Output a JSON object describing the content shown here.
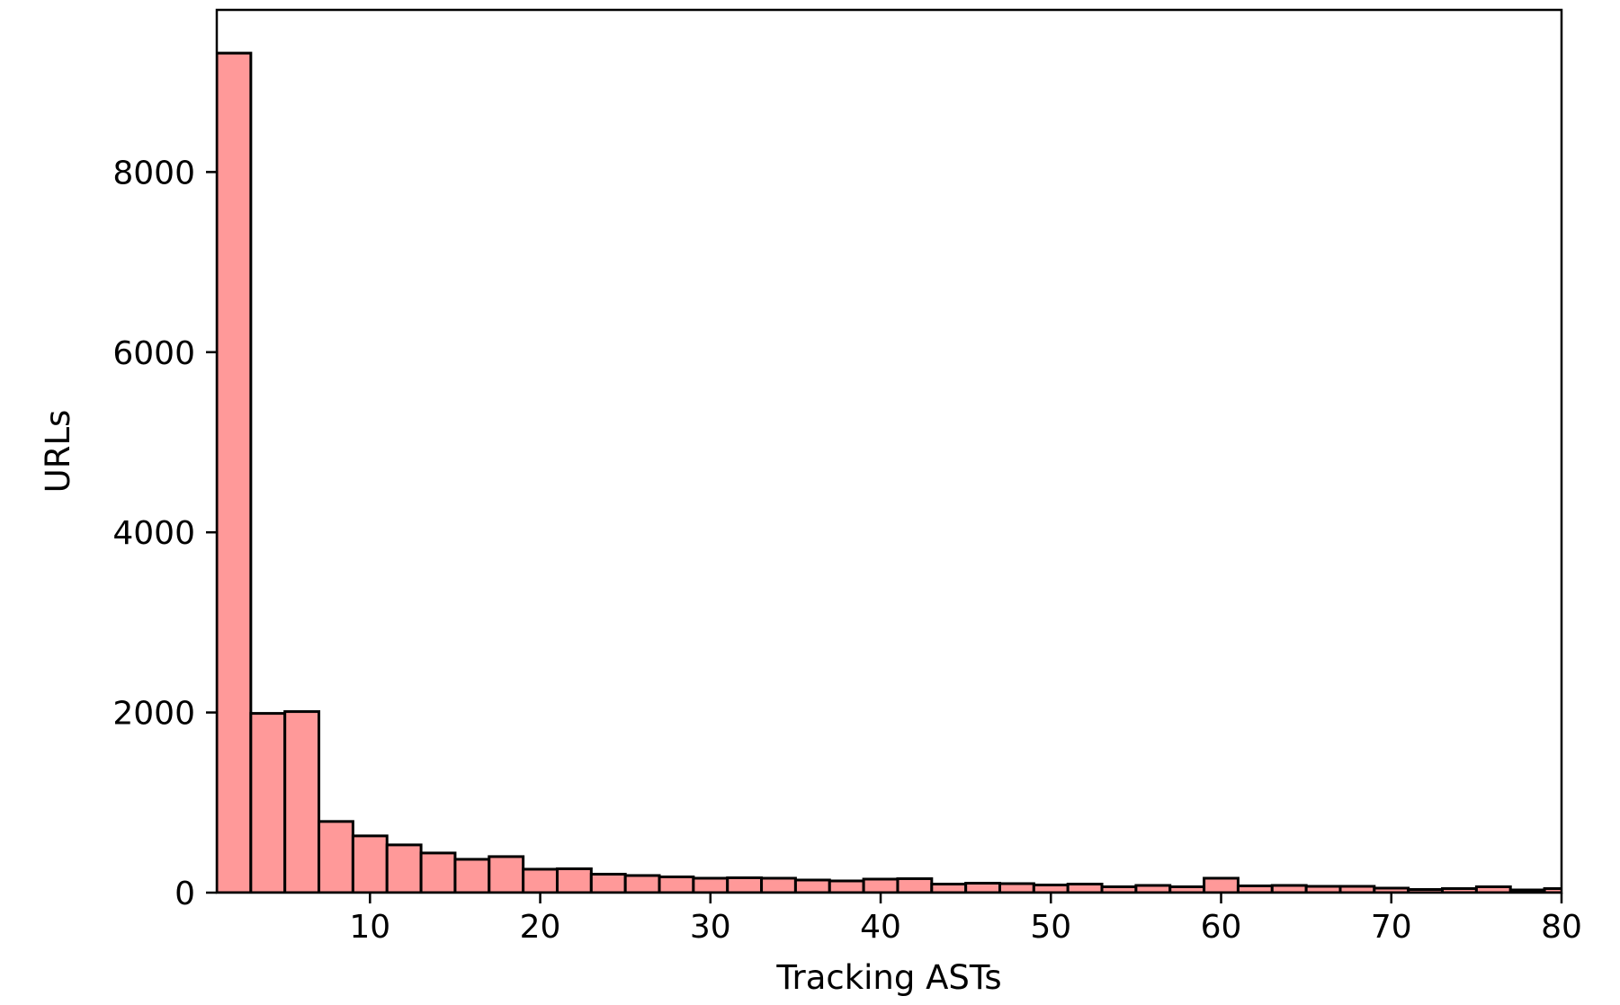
{
  "chart_data": {
    "type": "bar",
    "title": "",
    "xlabel": "Tracking ASTs",
    "ylabel": "URLs",
    "xlim": [
      1,
      80
    ],
    "ylim": [
      0,
      9800
    ],
    "bin_width": 2,
    "bins": [
      {
        "x0": 1,
        "x1": 3,
        "value": 9320
      },
      {
        "x0": 3,
        "x1": 5,
        "value": 1990
      },
      {
        "x0": 5,
        "x1": 7,
        "value": 2010
      },
      {
        "x0": 7,
        "x1": 9,
        "value": 790
      },
      {
        "x0": 9,
        "x1": 11,
        "value": 630
      },
      {
        "x0": 11,
        "x1": 13,
        "value": 530
      },
      {
        "x0": 13,
        "x1": 15,
        "value": 440
      },
      {
        "x0": 15,
        "x1": 17,
        "value": 370
      },
      {
        "x0": 17,
        "x1": 19,
        "value": 400
      },
      {
        "x0": 19,
        "x1": 21,
        "value": 260
      },
      {
        "x0": 21,
        "x1": 23,
        "value": 265
      },
      {
        "x0": 23,
        "x1": 25,
        "value": 205
      },
      {
        "x0": 25,
        "x1": 27,
        "value": 190
      },
      {
        "x0": 27,
        "x1": 29,
        "value": 175
      },
      {
        "x0": 29,
        "x1": 31,
        "value": 160
      },
      {
        "x0": 31,
        "x1": 33,
        "value": 165
      },
      {
        "x0": 33,
        "x1": 35,
        "value": 160
      },
      {
        "x0": 35,
        "x1": 37,
        "value": 140
      },
      {
        "x0": 37,
        "x1": 39,
        "value": 130
      },
      {
        "x0": 39,
        "x1": 41,
        "value": 150
      },
      {
        "x0": 41,
        "x1": 43,
        "value": 155
      },
      {
        "x0": 43,
        "x1": 45,
        "value": 95
      },
      {
        "x0": 45,
        "x1": 47,
        "value": 105
      },
      {
        "x0": 47,
        "x1": 49,
        "value": 100
      },
      {
        "x0": 49,
        "x1": 51,
        "value": 85
      },
      {
        "x0": 51,
        "x1": 53,
        "value": 95
      },
      {
        "x0": 53,
        "x1": 55,
        "value": 65
      },
      {
        "x0": 55,
        "x1": 57,
        "value": 80
      },
      {
        "x0": 57,
        "x1": 59,
        "value": 65
      },
      {
        "x0": 59,
        "x1": 61,
        "value": 160
      },
      {
        "x0": 61,
        "x1": 63,
        "value": 75
      },
      {
        "x0": 63,
        "x1": 65,
        "value": 80
      },
      {
        "x0": 65,
        "x1": 67,
        "value": 70
      },
      {
        "x0": 67,
        "x1": 69,
        "value": 70
      },
      {
        "x0": 69,
        "x1": 71,
        "value": 50
      },
      {
        "x0": 71,
        "x1": 73,
        "value": 35
      },
      {
        "x0": 73,
        "x1": 75,
        "value": 45
      },
      {
        "x0": 75,
        "x1": 77,
        "value": 65
      },
      {
        "x0": 77,
        "x1": 79,
        "value": 30
      },
      {
        "x0": 79,
        "x1": 81,
        "value": 45
      }
    ],
    "x_ticks": [
      10,
      20,
      30,
      40,
      50,
      60,
      70,
      80
    ],
    "x_tick_labels": [
      "10",
      "20",
      "30",
      "40",
      "50",
      "60",
      "70",
      "80"
    ],
    "y_ticks": [
      0,
      2000,
      4000,
      6000,
      8000
    ],
    "y_tick_labels": [
      "0",
      "2000",
      "4000",
      "6000",
      "8000"
    ],
    "grid": false,
    "legend": "none",
    "colors": {
      "bar_fill": "#ff9999",
      "bar_edge": "#000000"
    }
  }
}
